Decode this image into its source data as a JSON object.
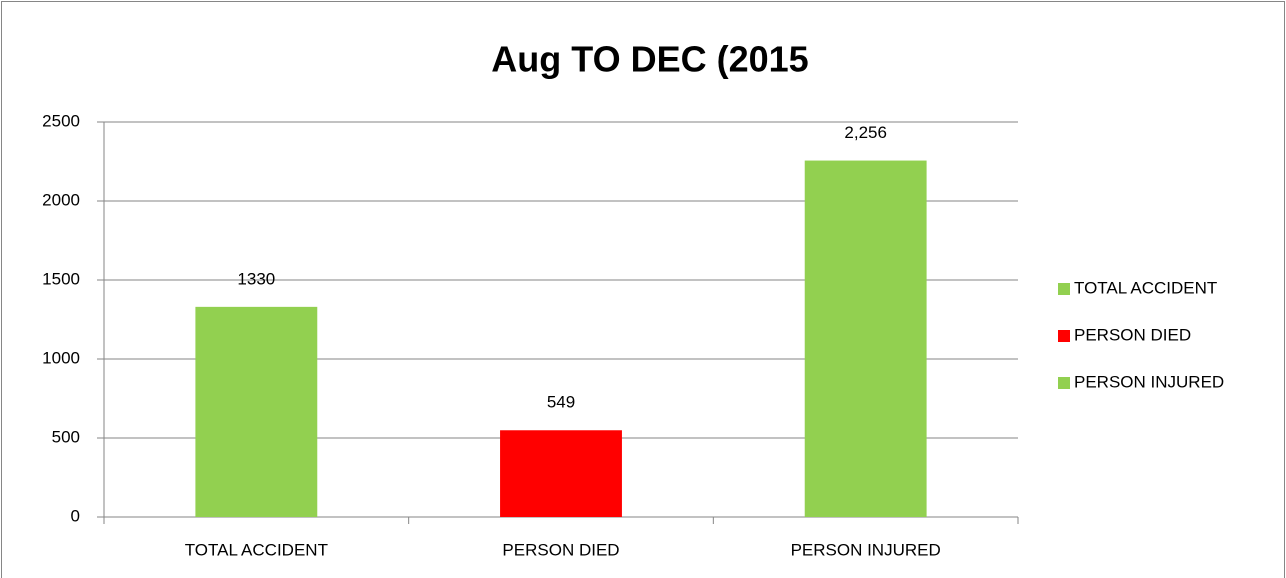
{
  "chart_data": {
    "type": "bar",
    "title": "Aug TO DEC (2015",
    "categories": [
      "TOTAL ACCIDENT",
      "PERSON DIED",
      "PERSON INJURED"
    ],
    "values": [
      1330,
      549,
      2256
    ],
    "value_labels": [
      "1330",
      "549",
      "2,256"
    ],
    "colors": [
      "#92d050",
      "#ff0000",
      "#92d050"
    ],
    "ylim": [
      0,
      2500
    ],
    "yticks": [
      0,
      500,
      1000,
      1500,
      2000,
      2500
    ],
    "grid": true,
    "legend": "right"
  }
}
